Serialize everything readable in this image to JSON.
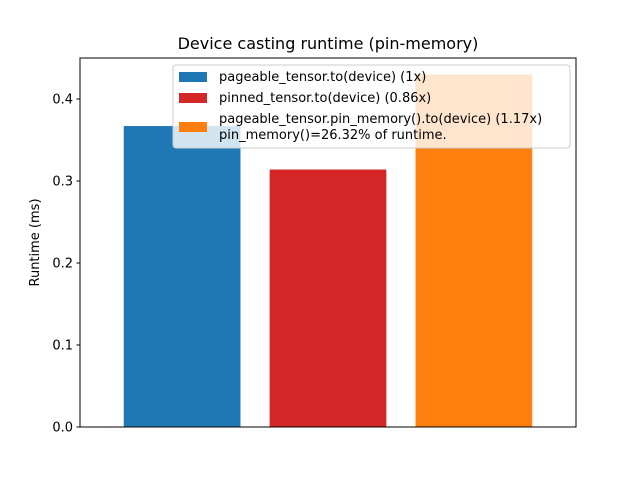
{
  "chart_data": {
    "type": "bar",
    "title": "Device casting runtime (pin-memory)",
    "xlabel": "",
    "ylabel": "Runtime (ms)",
    "ylim": [
      0,
      0.45
    ],
    "yticks": [
      0.0,
      0.1,
      0.2,
      0.3,
      0.4
    ],
    "ytick_labels": [
      "0.0",
      "0.1",
      "0.2",
      "0.3",
      "0.4"
    ],
    "grid": false,
    "legend_position": "top-right",
    "series": [
      {
        "name": "pageable_tensor.to(device) (1x)",
        "value": 0.367,
        "color": "#1f77b4"
      },
      {
        "name": "pinned_tensor.to(device) (0.86x)",
        "value": 0.314,
        "color": "#d62728"
      },
      {
        "name": "pageable_tensor.pin_memory().to(device) (1.17x)\npin_memory()=26.32% of runtime.",
        "value": 0.43,
        "color": "#ff7f0e"
      }
    ]
  }
}
